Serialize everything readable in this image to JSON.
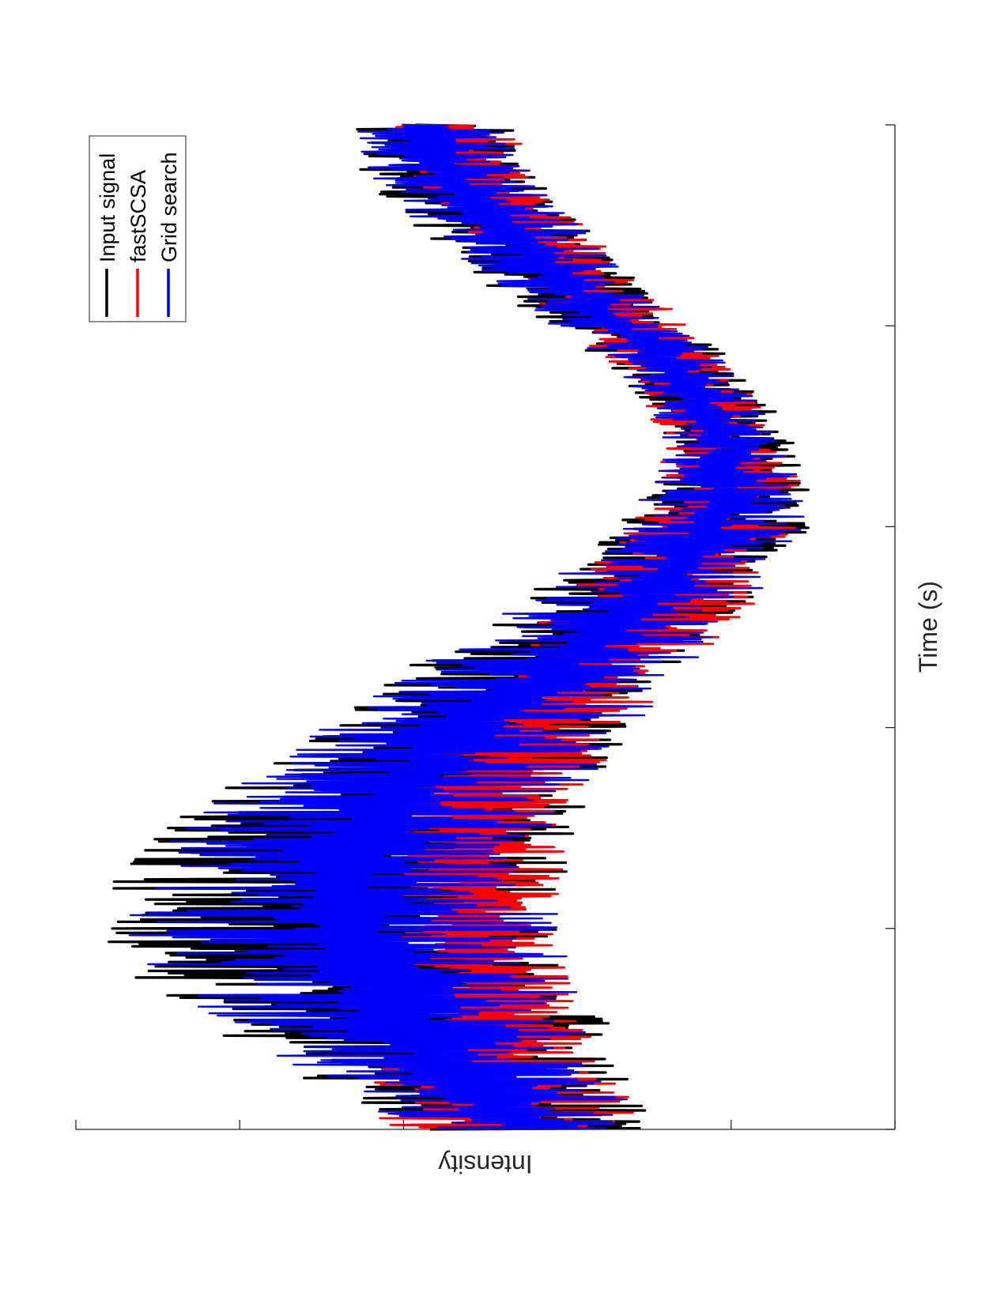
{
  "chart_data": {
    "type": "line",
    "orientation": "rotated-90-clockwise",
    "xlabel": "Time (s)",
    "ylabel": "Intensity",
    "x_tick_count": 6,
    "y_tick_count": 6,
    "grid": false,
    "legend_position": "top-right",
    "series": [
      {
        "name": "Input signal",
        "color": "#000000",
        "x": [
          0,
          0.04,
          0.08,
          0.12,
          0.16,
          0.2,
          0.24,
          0.28,
          0.32,
          0.36,
          0.4,
          0.44,
          0.48,
          0.52,
          0.56,
          0.6,
          0.64,
          0.68,
          0.72,
          0.76,
          0.8,
          0.84,
          0.88,
          0.92,
          0.96,
          1
        ],
        "envelope_low": [
          0.28,
          0.31,
          0.33,
          0.36,
          0.38,
          0.4,
          0.4,
          0.4,
          0.38,
          0.35,
          0.32,
          0.27,
          0.22,
          0.17,
          0.13,
          0.1,
          0.1,
          0.12,
          0.15,
          0.19,
          0.25,
          0.3,
          0.35,
          0.4,
          0.44,
          0.47
        ],
        "envelope_high": [
          0.61,
          0.7,
          0.79,
          0.88,
          0.94,
          0.97,
          0.97,
          0.93,
          0.86,
          0.78,
          0.7,
          0.63,
          0.56,
          0.48,
          0.41,
          0.34,
          0.3,
          0.28,
          0.3,
          0.35,
          0.42,
          0.5,
          0.56,
          0.62,
          0.66,
          0.67
        ]
      },
      {
        "name": "fastSCSA",
        "color": "#ff0000",
        "x": [
          0,
          0.04,
          0.08,
          0.12,
          0.16,
          0.2,
          0.24,
          0.28,
          0.32,
          0.36,
          0.4,
          0.44,
          0.48,
          0.52,
          0.56,
          0.6,
          0.64,
          0.68,
          0.72,
          0.76,
          0.8,
          0.84,
          0.88,
          0.92,
          0.96,
          1
        ],
        "envelope_low": [
          0.3,
          0.33,
          0.36,
          0.38,
          0.4,
          0.41,
          0.41,
          0.4,
          0.39,
          0.36,
          0.32,
          0.26,
          0.21,
          0.17,
          0.14,
          0.12,
          0.11,
          0.13,
          0.16,
          0.2,
          0.25,
          0.3,
          0.35,
          0.4,
          0.44,
          0.47
        ],
        "envelope_high": [
          0.62,
          0.66,
          0.65,
          0.62,
          0.61,
          0.61,
          0.62,
          0.63,
          0.62,
          0.6,
          0.57,
          0.53,
          0.47,
          0.42,
          0.38,
          0.34,
          0.3,
          0.28,
          0.31,
          0.35,
          0.4,
          0.46,
          0.51,
          0.56,
          0.6,
          0.63
        ]
      },
      {
        "name": "Grid search",
        "color": "#0000ff",
        "x": [
          0,
          0.04,
          0.08,
          0.12,
          0.16,
          0.2,
          0.24,
          0.28,
          0.32,
          0.36,
          0.4,
          0.44,
          0.48,
          0.52,
          0.56,
          0.6,
          0.64,
          0.68,
          0.72,
          0.76,
          0.8,
          0.84,
          0.88,
          0.92,
          0.96,
          1
        ],
        "envelope_low": [
          0.29,
          0.33,
          0.35,
          0.37,
          0.39,
          0.4,
          0.41,
          0.4,
          0.38,
          0.36,
          0.32,
          0.27,
          0.22,
          0.18,
          0.14,
          0.11,
          0.11,
          0.13,
          0.16,
          0.2,
          0.26,
          0.31,
          0.36,
          0.41,
          0.45,
          0.48
        ],
        "envelope_high": [
          0.6,
          0.68,
          0.77,
          0.85,
          0.91,
          0.94,
          0.94,
          0.91,
          0.85,
          0.78,
          0.7,
          0.62,
          0.55,
          0.47,
          0.4,
          0.34,
          0.3,
          0.28,
          0.3,
          0.35,
          0.42,
          0.49,
          0.55,
          0.61,
          0.65,
          0.67
        ]
      }
    ]
  }
}
